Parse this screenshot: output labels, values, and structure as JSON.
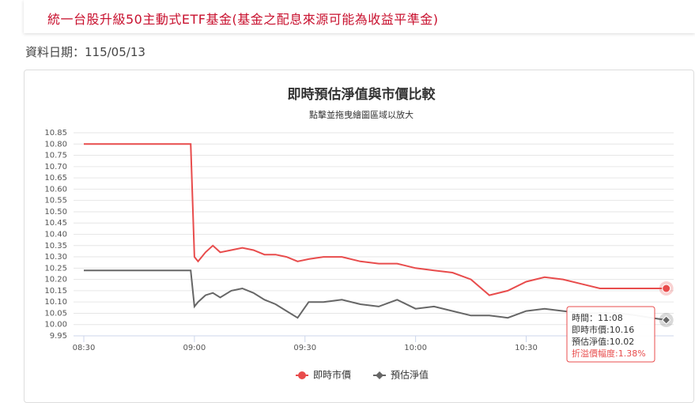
{
  "header": {
    "title": "統一台股升級50主動式ETF基金(基金之配息來源可能為收益平準金)",
    "date": "資料日期：115/05/13"
  },
  "chart_data": {
    "type": "line",
    "title": "即時預估淨值與市價比較",
    "subtitle": "點擊並拖曳繪圖區域以放大",
    "x": [
      "08:30",
      "08:59",
      "09:00",
      "09:01",
      "09:03",
      "09:05",
      "09:07",
      "09:10",
      "09:13",
      "09:16",
      "09:19",
      "09:22",
      "09:25",
      "09:28",
      "09:31",
      "09:35",
      "09:40",
      "09:45",
      "09:50",
      "09:55",
      "10:00",
      "10:05",
      "10:10",
      "10:15",
      "10:20",
      "10:25",
      "10:30",
      "10:35",
      "10:40",
      "10:45",
      "10:50",
      "10:55",
      "11:00",
      "11:04",
      "11:08"
    ],
    "series": [
      {
        "name": "即時市價",
        "color": "#e84c4c",
        "marker": "circle",
        "values": [
          10.8,
          10.8,
          10.3,
          10.28,
          10.32,
          10.35,
          10.32,
          10.33,
          10.34,
          10.33,
          10.31,
          10.31,
          10.3,
          10.28,
          10.29,
          10.3,
          10.3,
          10.28,
          10.27,
          10.27,
          10.25,
          10.24,
          10.23,
          10.2,
          10.13,
          10.15,
          10.19,
          10.21,
          10.2,
          10.18,
          10.16,
          10.16,
          10.16,
          10.16,
          10.16
        ]
      },
      {
        "name": "預估淨值",
        "color": "#666666",
        "marker": "diamond",
        "values": [
          10.24,
          10.24,
          10.08,
          10.1,
          10.13,
          10.14,
          10.12,
          10.15,
          10.16,
          10.14,
          10.11,
          10.09,
          10.06,
          10.03,
          10.1,
          10.1,
          10.11,
          10.09,
          10.08,
          10.11,
          10.07,
          10.08,
          10.06,
          10.04,
          10.04,
          10.03,
          10.06,
          10.07,
          10.06,
          10.05,
          10.05,
          10.05,
          10.04,
          10.03,
          10.02
        ]
      }
    ],
    "xlim": [
      "08:30",
      "11:10"
    ],
    "xticks": [
      "08:30",
      "09:00",
      "09:30",
      "10:00",
      "10:30"
    ],
    "ylim": [
      9.95,
      10.85
    ],
    "yticks": [
      9.95,
      {
        "value": 10.0,
        "label": "10.00"
      },
      10.05,
      {
        "value": 10.1,
        "label": "10.10"
      },
      10.15,
      {
        "value": 10.2,
        "label": "10.20"
      },
      10.25,
      {
        "value": 10.3,
        "label": "10.30"
      },
      10.35,
      {
        "value": 10.4,
        "label": "10.40"
      },
      10.45,
      {
        "value": 10.5,
        "label": "10.50"
      },
      10.55,
      {
        "value": 10.6,
        "label": "10.60"
      },
      10.65,
      {
        "value": 10.7,
        "label": "10.70"
      },
      10.75,
      {
        "value": 10.8,
        "label": "10.80"
      },
      10.85
    ],
    "grid": true,
    "tooltip": [
      "時間：11:08",
      "即時市價:10.16",
      "預估淨值:10.02",
      "折溢價幅度:1.38%"
    ]
  }
}
